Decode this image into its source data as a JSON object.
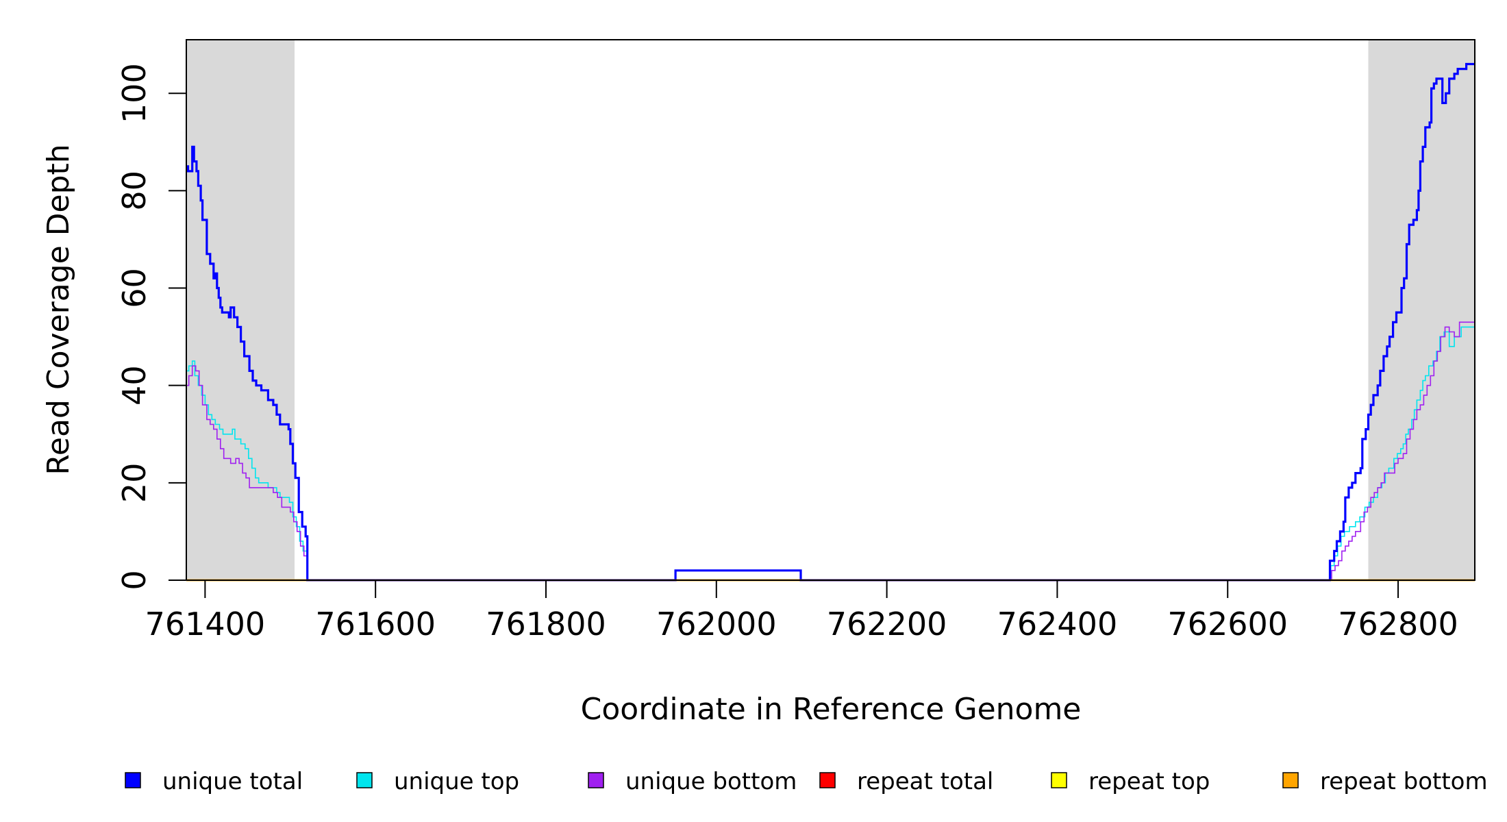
{
  "chart_data": {
    "type": "line",
    "xlabel": "Coordinate in Reference Genome",
    "ylabel": "Read Coverage Depth",
    "xlim": [
      761378,
      762890
    ],
    "ylim": [
      0,
      111
    ],
    "x_ticks": [
      761400,
      761600,
      761800,
      762000,
      762200,
      762400,
      762600,
      762800
    ],
    "x_tick_labels": [
      "761400",
      "761600",
      "761800",
      "762000",
      "762200",
      "762400",
      "762600",
      "762800"
    ],
    "y_ticks": [
      0,
      20,
      40,
      60,
      80,
      100
    ],
    "y_tick_labels": [
      "0",
      "20",
      "40",
      "60",
      "80",
      "100"
    ],
    "shaded_regions": [
      [
        761378,
        761505
      ],
      [
        762765,
        762890
      ]
    ],
    "grid": false,
    "legend_position": "bottom",
    "series": [
      {
        "name": "unique total",
        "color": "#0000ff",
        "points": [
          [
            761378,
            85
          ],
          [
            761380,
            84
          ],
          [
            761385,
            89
          ],
          [
            761387,
            86
          ],
          [
            761390,
            84
          ],
          [
            761392,
            81
          ],
          [
            761395,
            78
          ],
          [
            761397,
            74
          ],
          [
            761402,
            67
          ],
          [
            761406,
            65
          ],
          [
            761410,
            62
          ],
          [
            761412,
            63
          ],
          [
            761414,
            60
          ],
          [
            761416,
            58
          ],
          [
            761418,
            56
          ],
          [
            761420,
            55
          ],
          [
            761428,
            54
          ],
          [
            761430,
            56
          ],
          [
            761434,
            54
          ],
          [
            761438,
            52
          ],
          [
            761442,
            49
          ],
          [
            761446,
            46
          ],
          [
            761452,
            43
          ],
          [
            761456,
            41
          ],
          [
            761460,
            40
          ],
          [
            761466,
            39
          ],
          [
            761474,
            37
          ],
          [
            761480,
            36
          ],
          [
            761484,
            34
          ],
          [
            761488,
            32
          ],
          [
            761498,
            31
          ],
          [
            761500,
            28
          ],
          [
            761503,
            24
          ],
          [
            761506,
            21
          ],
          [
            761510,
            14
          ],
          [
            761514,
            11
          ],
          [
            761518,
            9
          ],
          [
            761520,
            0
          ],
          [
            761950,
            0
          ],
          [
            761952,
            2
          ],
          [
            762097,
            2
          ],
          [
            762099,
            0
          ],
          [
            762718,
            0
          ],
          [
            762720,
            4
          ],
          [
            762725,
            6
          ],
          [
            762728,
            8
          ],
          [
            762732,
            10
          ],
          [
            762736,
            12
          ],
          [
            762738,
            17
          ],
          [
            762742,
            19
          ],
          [
            762746,
            20
          ],
          [
            762750,
            22
          ],
          [
            762756,
            23
          ],
          [
            762758,
            29
          ],
          [
            762762,
            31
          ],
          [
            762765,
            34
          ],
          [
            762768,
            36
          ],
          [
            762771,
            38
          ],
          [
            762776,
            40
          ],
          [
            762779,
            43
          ],
          [
            762783,
            46
          ],
          [
            762787,
            48
          ],
          [
            762790,
            50
          ],
          [
            762794,
            53
          ],
          [
            762798,
            55
          ],
          [
            762804,
            60
          ],
          [
            762807,
            62
          ],
          [
            762810,
            69
          ],
          [
            762813,
            73
          ],
          [
            762818,
            74
          ],
          [
            762822,
            76
          ],
          [
            762824,
            80
          ],
          [
            762826,
            86
          ],
          [
            762829,
            89
          ],
          [
            762832,
            93
          ],
          [
            762837,
            94
          ],
          [
            762839,
            101
          ],
          [
            762842,
            102
          ],
          [
            762845,
            103
          ],
          [
            762852,
            98
          ],
          [
            762856,
            100
          ],
          [
            762860,
            103
          ],
          [
            762866,
            104
          ],
          [
            762870,
            105
          ],
          [
            762880,
            106
          ],
          [
            762890,
            106
          ]
        ]
      },
      {
        "name": "unique top",
        "color": "#00e5ee",
        "points": [
          [
            761378,
            43
          ],
          [
            761381,
            44
          ],
          [
            761385,
            45
          ],
          [
            761388,
            42
          ],
          [
            761392,
            40
          ],
          [
            761396,
            38
          ],
          [
            761400,
            36
          ],
          [
            761404,
            34
          ],
          [
            761408,
            33
          ],
          [
            761412,
            32
          ],
          [
            761417,
            31
          ],
          [
            761421,
            30
          ],
          [
            761427,
            30
          ],
          [
            761432,
            31
          ],
          [
            761435,
            29
          ],
          [
            761442,
            28
          ],
          [
            761447,
            27
          ],
          [
            761451,
            25
          ],
          [
            761455,
            23
          ],
          [
            761459,
            21
          ],
          [
            761463,
            20
          ],
          [
            761468,
            20
          ],
          [
            761474,
            19
          ],
          [
            761480,
            19
          ],
          [
            761484,
            18
          ],
          [
            761488,
            17
          ],
          [
            761495,
            17
          ],
          [
            761499,
            16
          ],
          [
            761503,
            13
          ],
          [
            761507,
            11
          ],
          [
            761511,
            8
          ],
          [
            761515,
            6
          ],
          [
            761520,
            0
          ],
          [
            762718,
            0
          ],
          [
            762721,
            3
          ],
          [
            762725,
            5
          ],
          [
            762729,
            7
          ],
          [
            762733,
            9
          ],
          [
            762737,
            10
          ],
          [
            762743,
            11
          ],
          [
            762750,
            12
          ],
          [
            762755,
            13
          ],
          [
            762761,
            15
          ],
          [
            762766,
            16
          ],
          [
            762771,
            17
          ],
          [
            762776,
            19
          ],
          [
            762781,
            20
          ],
          [
            762785,
            22
          ],
          [
            762789,
            23
          ],
          [
            762795,
            25
          ],
          [
            762799,
            26
          ],
          [
            762803,
            27
          ],
          [
            762806,
            28
          ],
          [
            762809,
            30
          ],
          [
            762812,
            31
          ],
          [
            762816,
            33
          ],
          [
            762819,
            35
          ],
          [
            762822,
            37
          ],
          [
            762826,
            39
          ],
          [
            762829,
            41
          ],
          [
            762832,
            42
          ],
          [
            762836,
            44
          ],
          [
            762841,
            45
          ],
          [
            762845,
            47
          ],
          [
            762849,
            50
          ],
          [
            762854,
            51
          ],
          [
            762860,
            48
          ],
          [
            762866,
            50
          ],
          [
            762874,
            52
          ],
          [
            762882,
            52
          ],
          [
            762890,
            52
          ]
        ]
      },
      {
        "name": "unique bottom",
        "color": "#a020f0",
        "points": [
          [
            761378,
            40
          ],
          [
            761381,
            42
          ],
          [
            761385,
            44
          ],
          [
            761389,
            43
          ],
          [
            761393,
            40
          ],
          [
            761397,
            36
          ],
          [
            761402,
            33
          ],
          [
            761406,
            32
          ],
          [
            761410,
            31
          ],
          [
            761414,
            29
          ],
          [
            761418,
            27
          ],
          [
            761422,
            25
          ],
          [
            761430,
            24
          ],
          [
            761436,
            25
          ],
          [
            761440,
            24
          ],
          [
            761444,
            22
          ],
          [
            761448,
            21
          ],
          [
            761452,
            19
          ],
          [
            761480,
            18
          ],
          [
            761485,
            17
          ],
          [
            761490,
            15
          ],
          [
            761500,
            14
          ],
          [
            761504,
            12
          ],
          [
            761508,
            10
          ],
          [
            761512,
            7
          ],
          [
            761516,
            5
          ],
          [
            761520,
            0
          ],
          [
            762718,
            0
          ],
          [
            762722,
            2
          ],
          [
            762726,
            3
          ],
          [
            762730,
            4
          ],
          [
            762734,
            6
          ],
          [
            762738,
            7
          ],
          [
            762742,
            8
          ],
          [
            762746,
            9
          ],
          [
            762750,
            10
          ],
          [
            762756,
            12
          ],
          [
            762760,
            14
          ],
          [
            762764,
            15
          ],
          [
            762768,
            17
          ],
          [
            762772,
            18
          ],
          [
            762776,
            19
          ],
          [
            762780,
            20
          ],
          [
            762784,
            22
          ],
          [
            762796,
            24
          ],
          [
            762800,
            25
          ],
          [
            762806,
            26
          ],
          [
            762810,
            29
          ],
          [
            762814,
            31
          ],
          [
            762818,
            33
          ],
          [
            762822,
            35
          ],
          [
            762826,
            36
          ],
          [
            762830,
            38
          ],
          [
            762834,
            40
          ],
          [
            762838,
            42
          ],
          [
            762842,
            45
          ],
          [
            762846,
            47
          ],
          [
            762850,
            50
          ],
          [
            762855,
            52
          ],
          [
            762860,
            51
          ],
          [
            762866,
            50
          ],
          [
            762872,
            53
          ],
          [
            762880,
            53
          ],
          [
            762890,
            53
          ]
        ]
      },
      {
        "name": "repeat total",
        "color": "#ff0000",
        "points": [
          [
            761378,
            0
          ],
          [
            762890,
            0
          ]
        ]
      },
      {
        "name": "repeat top",
        "color": "#ffff00",
        "points": [
          [
            761378,
            0
          ],
          [
            762890,
            0
          ]
        ]
      },
      {
        "name": "repeat bottom",
        "color": "#ffa500",
        "points": [
          [
            761378,
            0
          ],
          [
            762890,
            0
          ]
        ]
      }
    ]
  }
}
